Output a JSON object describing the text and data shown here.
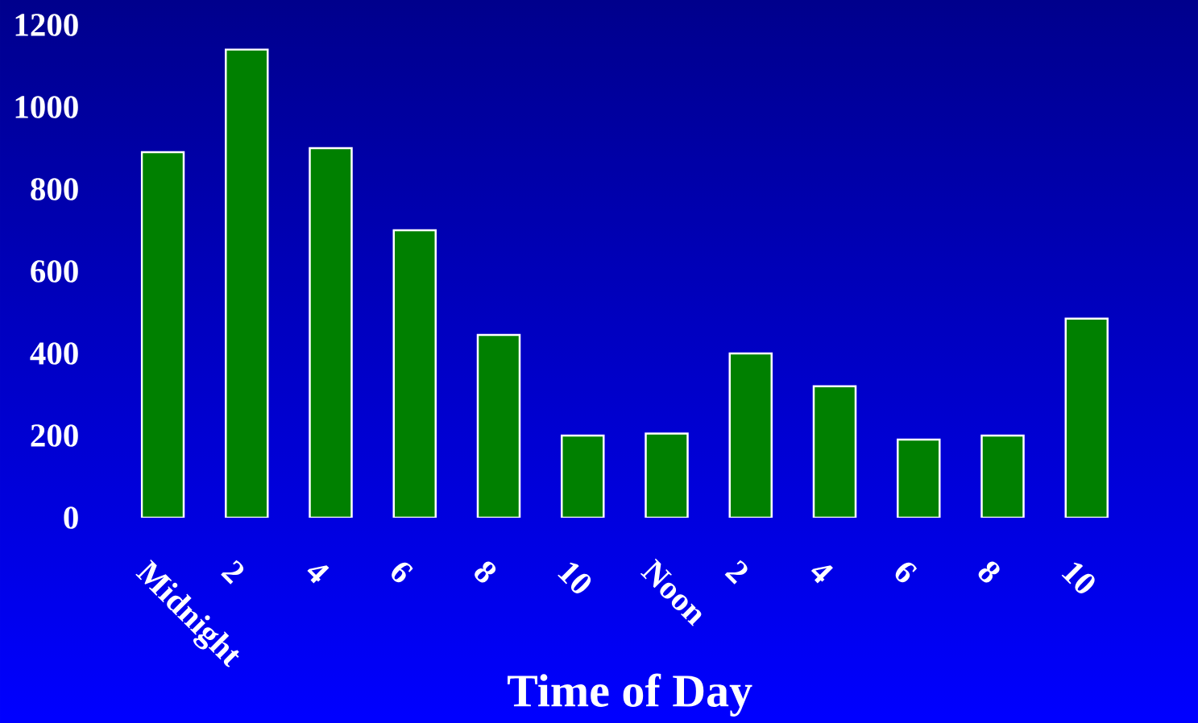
{
  "chart_data": {
    "type": "bar",
    "xlabel": "Time of Day",
    "categories": [
      "Midnight",
      "2",
      "4",
      "6",
      "8",
      "10",
      "Noon",
      "2",
      "4",
      "6",
      "8",
      "10"
    ],
    "values": [
      890,
      1140,
      900,
      700,
      445,
      200,
      205,
      400,
      320,
      190,
      200,
      485
    ],
    "color": "#008000",
    "ylim": [
      0,
      1200
    ],
    "yticks": [
      0,
      200,
      400,
      600,
      800,
      1000,
      1200
    ],
    "grid": false
  }
}
